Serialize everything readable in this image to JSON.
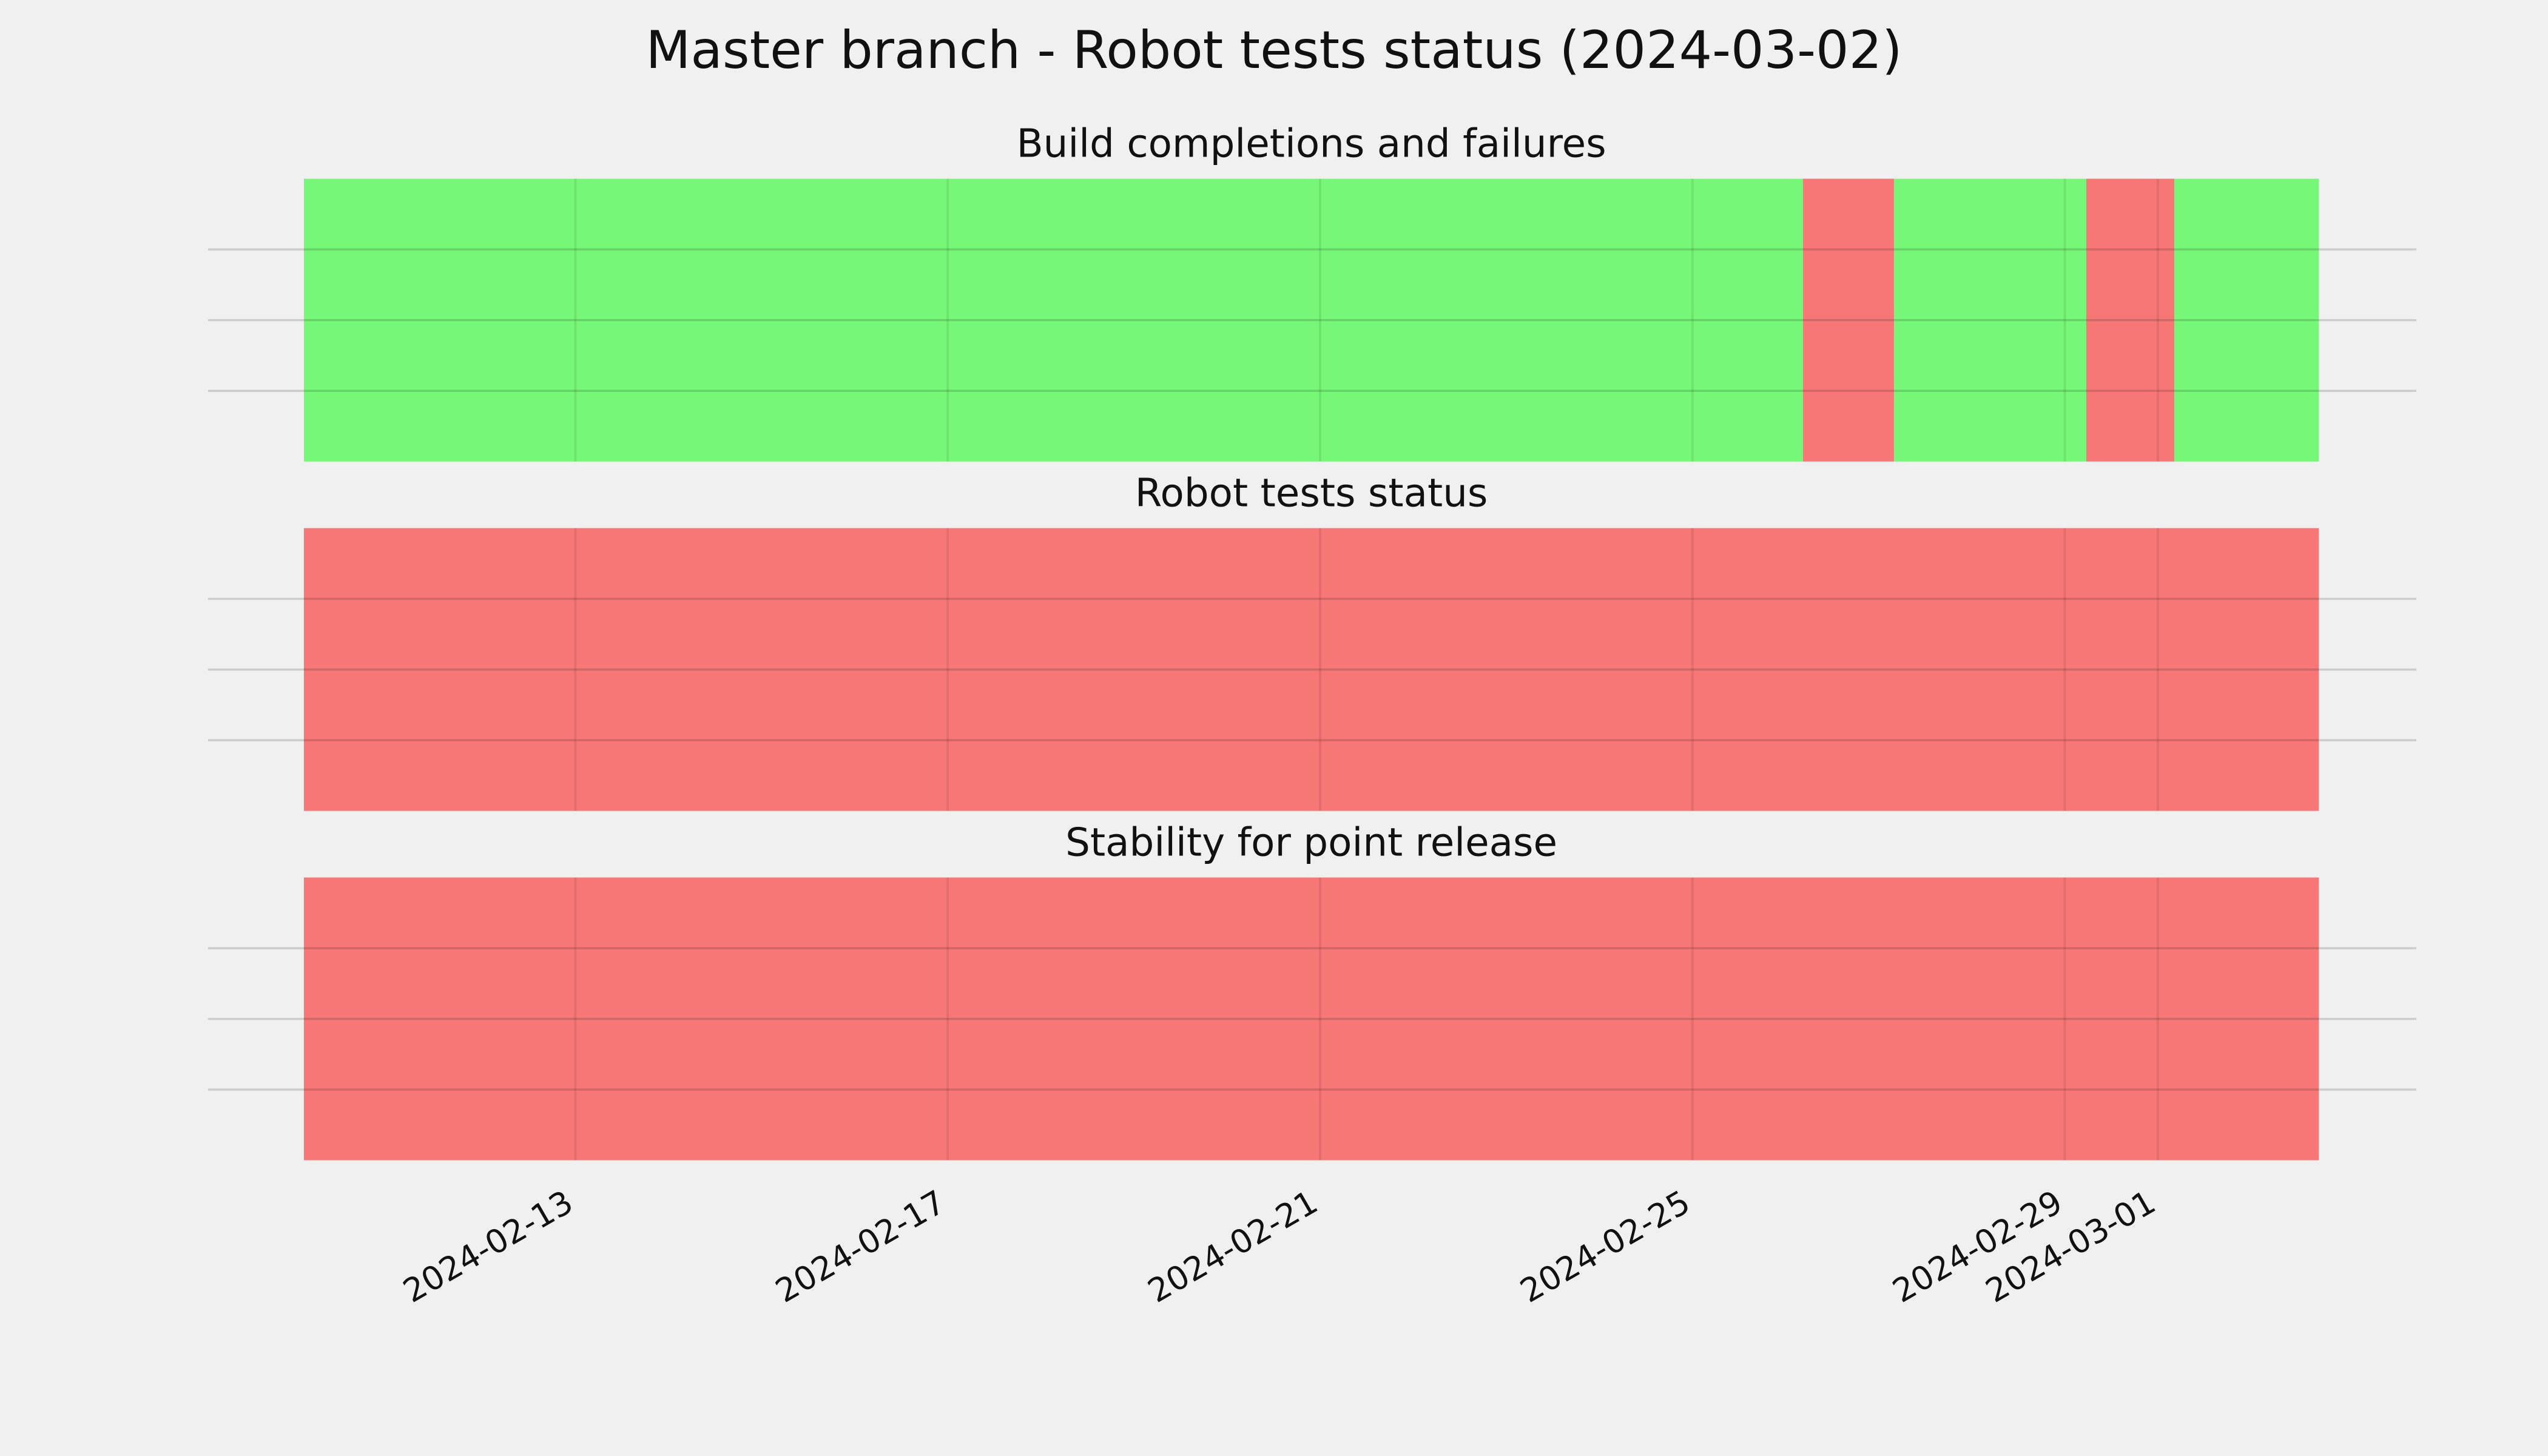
{
  "title": "Master branch - Robot tests status (2024-03-02)",
  "chart_data": [
    {
      "type": "timeline",
      "title": "Build completions and failures",
      "xlim": [
        "2024-02-10T02:00:00Z",
        "2024-03-02T17:30:00Z"
      ],
      "xticks": [
        "2024-02-13",
        "2024-02-17",
        "2024-02-21",
        "2024-02-25",
        "2024-02-29",
        "2024-03-01"
      ],
      "ylim": [
        0,
        1
      ],
      "yticks": [
        0.25,
        0.5,
        0.75
      ],
      "grid": true,
      "spans": [
        {
          "start": "2024-02-10T02:00:00Z",
          "end": "2024-02-26T04:30:00Z",
          "color": "#77f777"
        },
        {
          "start": "2024-02-26T04:30:00Z",
          "end": "2024-02-27T04:00:00Z",
          "color": "#f77777"
        },
        {
          "start": "2024-02-27T04:00:00Z",
          "end": "2024-02-29T05:30:00Z",
          "color": "#77f777"
        },
        {
          "start": "2024-02-29T05:30:00Z",
          "end": "2024-03-01T04:15:00Z",
          "color": "#f77777"
        },
        {
          "start": "2024-03-01T04:15:00Z",
          "end": "2024-03-02T17:30:00Z",
          "color": "#77f777"
        }
      ]
    },
    {
      "type": "timeline",
      "title": "Robot tests status",
      "xlim": [
        "2024-02-10T02:00:00Z",
        "2024-03-02T17:30:00Z"
      ],
      "xticks": [
        "2024-02-13",
        "2024-02-17",
        "2024-02-21",
        "2024-02-25",
        "2024-02-29",
        "2024-03-01"
      ],
      "ylim": [
        0,
        1
      ],
      "yticks": [
        0.25,
        0.5,
        0.75
      ],
      "grid": true,
      "spans": [
        {
          "start": "2024-02-10T02:00:00Z",
          "end": "2024-03-02T17:30:00Z",
          "color": "#f77777"
        }
      ]
    },
    {
      "type": "timeline",
      "title": "Stability for point release",
      "xlim": [
        "2024-02-10T02:00:00Z",
        "2024-03-02T17:30:00Z"
      ],
      "xticks": [
        "2024-02-13",
        "2024-02-17",
        "2024-02-21",
        "2024-02-25",
        "2024-02-29",
        "2024-03-01"
      ],
      "ylim": [
        0,
        1
      ],
      "yticks": [
        0.25,
        0.5,
        0.75
      ],
      "grid": true,
      "spans": [
        {
          "start": "2024-02-10T02:00:00Z",
          "end": "2024-03-02T17:30:00Z",
          "color": "#f77777"
        }
      ],
      "show_xtick_labels": true
    }
  ]
}
